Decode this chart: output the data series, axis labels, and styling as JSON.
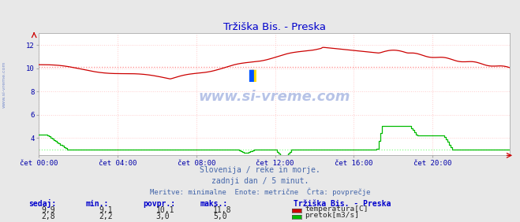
{
  "title": "Tržiška Bis. - Preska",
  "title_color": "#0000cc",
  "bg_color": "#e8e8e8",
  "plot_bg_color": "#ffffff",
  "grid_color": "#ffcccc",
  "xlabel_color": "#0000aa",
  "ylabel_ticks": [
    4,
    6,
    8,
    10,
    12
  ],
  "ytick_labels": [
    "4",
    "6",
    "8",
    "10",
    "12"
  ],
  "ylim": [
    2.5,
    13.0
  ],
  "xlim": [
    0,
    287
  ],
  "xtick_positions": [
    0,
    48,
    96,
    144,
    192,
    240
  ],
  "xtick_labels": [
    "čet 00:00",
    "čet 04:00",
    "čet 08:00",
    "čet 12:00",
    "čet 16:00",
    "čet 20:00"
  ],
  "subtitle_lines": [
    "Slovenija / reke in morje.",
    "zadnji dan / 5 minut.",
    "Meritve: minimalne  Enote: metrične  Črta: povprečje"
  ],
  "subtitle_color": "#4466aa",
  "temp_avg": 10.1,
  "flow_avg": 3.0,
  "temp_color": "#cc0000",
  "flow_color": "#00bb00",
  "legend_station": "Tržiška Bis. - Preska",
  "legend_items": [
    {
      "label": "temperatura[C]",
      "color": "#cc0000"
    },
    {
      "label": "pretok[m3/s]",
      "color": "#00bb00"
    }
  ],
  "table_headers": [
    "sedaj:",
    "min.:",
    "povpr.:",
    "maks.:"
  ],
  "table_rows": [
    {
      "sedaj": "9,9",
      "min": "9,1",
      "povpr": "10,1",
      "maks": "11,8"
    },
    {
      "sedaj": "2,8",
      "min": "2,2",
      "povpr": "3,0",
      "maks": "5,0"
    }
  ]
}
